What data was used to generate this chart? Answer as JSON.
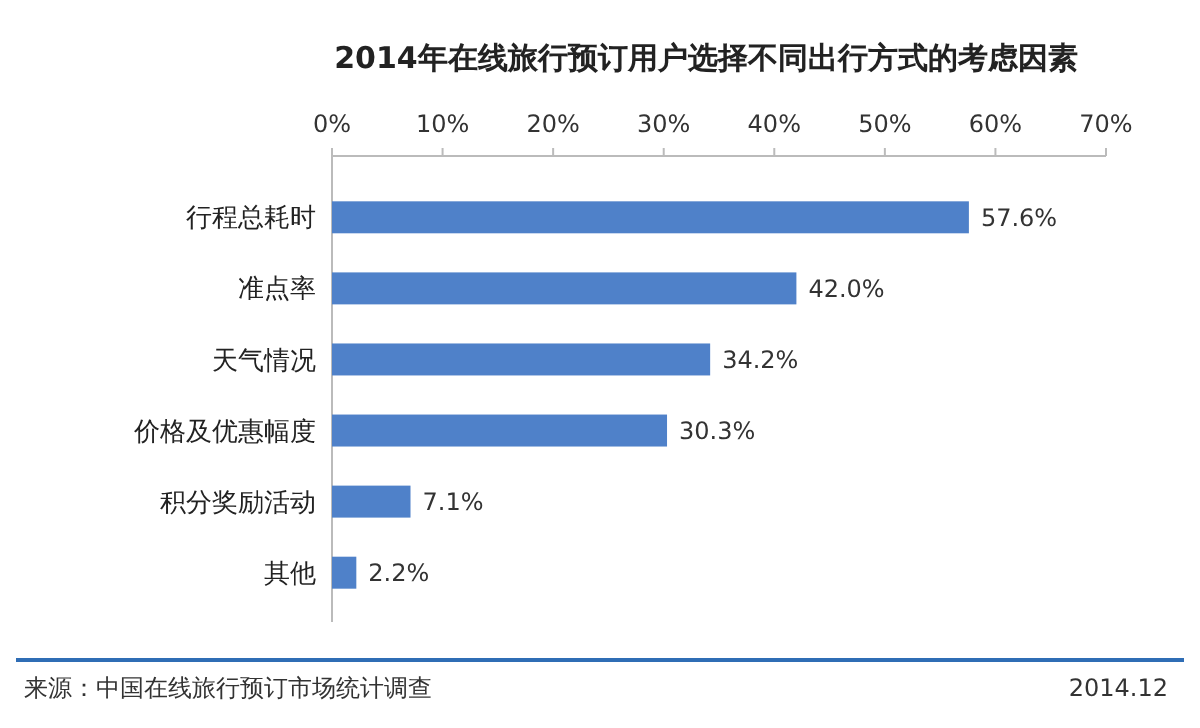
{
  "chart_data": {
    "type": "bar",
    "orientation": "horizontal",
    "title": "2014年在线旅行预订用户选择不同出行方式的考虑因素",
    "categories": [
      "行程总耗时",
      "准点率",
      "天气情况",
      "价格及优惠幅度",
      "积分奖励活动",
      "其他"
    ],
    "values": [
      57.6,
      42.0,
      34.2,
      30.3,
      7.1,
      2.2
    ],
    "value_labels": [
      "57.6%",
      "42.0%",
      "34.2%",
      "30.3%",
      "7.1%",
      "2.2%"
    ],
    "color": "#4f81c9",
    "xlim": [
      0,
      70
    ],
    "xticks": [
      {
        "value": 0,
        "label": "0%"
      },
      {
        "value": 10,
        "label": "10%"
      },
      {
        "value": 20,
        "label": "20%"
      },
      {
        "value": 30,
        "label": "30%"
      },
      {
        "value": 40,
        "label": "40%"
      },
      {
        "value": 50,
        "label": "50%"
      },
      {
        "value": 60,
        "label": "60%"
      },
      {
        "value": 70,
        "label": "70%"
      }
    ],
    "grid": false,
    "annotations": [
      "来源：中国在线旅行预订市场统计调查",
      "2014.12"
    ]
  }
}
